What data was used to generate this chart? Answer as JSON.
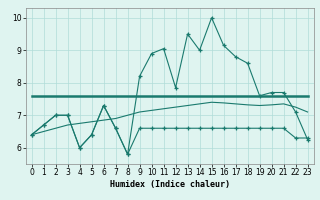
{
  "x_values": [
    0,
    1,
    2,
    3,
    4,
    5,
    6,
    7,
    8,
    9,
    10,
    11,
    12,
    13,
    14,
    15,
    16,
    17,
    18,
    19,
    20,
    21,
    22,
    23
  ],
  "line1_y": [
    6.4,
    6.7,
    7.0,
    7.0,
    6.0,
    6.4,
    7.3,
    6.6,
    5.8,
    8.2,
    8.9,
    9.05,
    7.85,
    9.5,
    9.0,
    10.0,
    9.15,
    8.8,
    8.6,
    7.6,
    7.7,
    7.7,
    7.1,
    6.25
  ],
  "line2_y": [
    6.4,
    6.7,
    7.0,
    7.0,
    6.0,
    6.4,
    7.3,
    6.6,
    5.8,
    6.6,
    6.6,
    6.6,
    6.6,
    6.6,
    6.6,
    6.6,
    6.6,
    6.6,
    6.6,
    6.6,
    6.6,
    6.6,
    6.3,
    6.3
  ],
  "line3_y": [
    7.6,
    7.6,
    7.6,
    7.6,
    7.6,
    7.6,
    7.6,
    7.6,
    7.6,
    7.6,
    7.6,
    7.6,
    7.6,
    7.6,
    7.6,
    7.6,
    7.6,
    7.6,
    7.6,
    7.6,
    7.6,
    7.6,
    7.6,
    7.6
  ],
  "line4_y": [
    6.4,
    6.5,
    6.6,
    6.7,
    6.75,
    6.8,
    6.85,
    6.9,
    7.0,
    7.1,
    7.15,
    7.2,
    7.25,
    7.3,
    7.35,
    7.4,
    7.38,
    7.35,
    7.32,
    7.3,
    7.32,
    7.35,
    7.25,
    7.1
  ],
  "line_color": "#1a7a6e",
  "bg_color": "#dff4f0",
  "grid_color": "#b0ddd8",
  "xlabel": "Humidex (Indice chaleur)",
  "ylim": [
    5.5,
    10.3
  ],
  "xlim": [
    -0.5,
    23.5
  ],
  "yticks": [
    6,
    7,
    8,
    9,
    10
  ],
  "xticks": [
    0,
    1,
    2,
    3,
    4,
    5,
    6,
    7,
    8,
    9,
    10,
    11,
    12,
    13,
    14,
    15,
    16,
    17,
    18,
    19,
    20,
    21,
    22,
    23
  ]
}
